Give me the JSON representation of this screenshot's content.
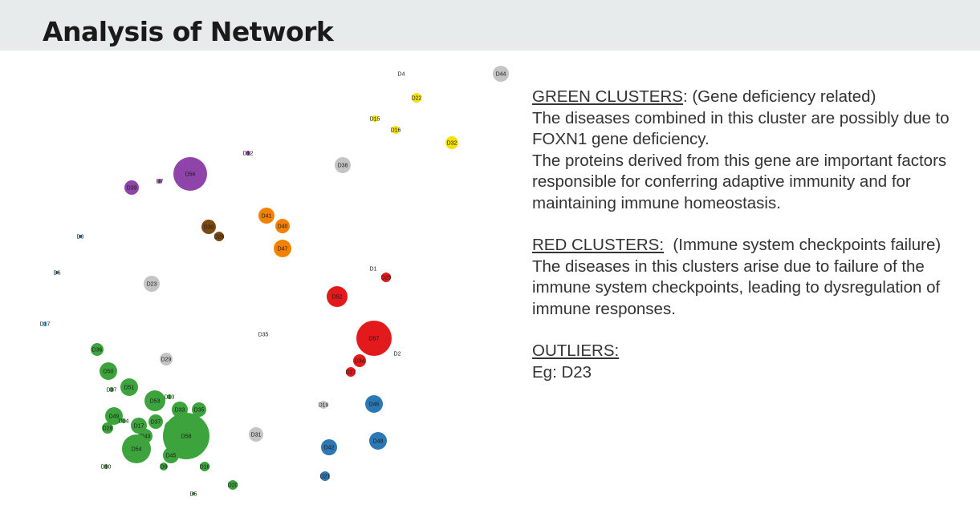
{
  "title": "Analysis of Network",
  "colors": {
    "green": "#3da33d",
    "red": "#e31a1c",
    "blue": "#2b78b4",
    "purple": "#8e44a8",
    "orange": "#f28200",
    "brown": "#7b4a12",
    "yellow": "#f5e100",
    "grey": "#c4c4c4",
    "lightblue": "#79b8e8"
  },
  "network": {
    "nodes": [
      {
        "id": "D4",
        "color": "yellow"
      },
      {
        "id": "D44",
        "color": "grey"
      },
      {
        "id": "D22",
        "color": "yellow"
      },
      {
        "id": "D15",
        "color": "yellow"
      },
      {
        "id": "D16",
        "color": "yellow"
      },
      {
        "id": "D32",
        "color": "yellow"
      },
      {
        "id": "D12",
        "color": "purple"
      },
      {
        "id": "D38",
        "color": "grey"
      },
      {
        "id": "D56",
        "color": "purple"
      },
      {
        "id": "D7",
        "color": "purple"
      },
      {
        "id": "D39",
        "color": "purple"
      },
      {
        "id": "D41",
        "color": "orange"
      },
      {
        "id": "D40",
        "color": "orange"
      },
      {
        "id": "D30",
        "color": "brown"
      },
      {
        "id": "D26",
        "color": "brown"
      },
      {
        "id": "D47",
        "color": "orange"
      },
      {
        "id": "D8",
        "color": "blue"
      },
      {
        "id": "D6",
        "color": "blue"
      },
      {
        "id": "D1",
        "color": "red"
      },
      {
        "id": "D25",
        "color": "red"
      },
      {
        "id": "D23",
        "color": "grey"
      },
      {
        "id": "D52",
        "color": "red"
      },
      {
        "id": "D17",
        "color": "lightblue"
      },
      {
        "id": "D35",
        "color": "grey"
      },
      {
        "id": "D57",
        "color": "red"
      },
      {
        "id": "D36",
        "color": "green"
      },
      {
        "id": "D2",
        "color": "red"
      },
      {
        "id": "D29",
        "color": "grey"
      },
      {
        "id": "D34",
        "color": "red"
      },
      {
        "id": "D50",
        "color": "green"
      },
      {
        "id": "D27",
        "color": "red"
      },
      {
        "id": "D51",
        "color": "green"
      },
      {
        "id": "D37",
        "color": "green"
      },
      {
        "id": "D53",
        "color": "green"
      },
      {
        "id": "D13",
        "color": "green"
      },
      {
        "id": "D19",
        "color": "grey"
      },
      {
        "id": "D46",
        "color": "blue"
      },
      {
        "id": "D33",
        "color": "green"
      },
      {
        "id": "D35",
        "color": "green"
      },
      {
        "id": "D3",
        "color": "green"
      },
      {
        "id": "D49",
        "color": "green"
      },
      {
        "id": "D14",
        "color": "green"
      },
      {
        "id": "D17",
        "color": "green"
      },
      {
        "id": "D37",
        "color": "green"
      },
      {
        "id": "D24",
        "color": "green"
      },
      {
        "id": "D28",
        "color": "green"
      },
      {
        "id": "D43",
        "color": "green"
      },
      {
        "id": "D58",
        "color": "green"
      },
      {
        "id": "D31",
        "color": "grey"
      },
      {
        "id": "D48",
        "color": "blue"
      },
      {
        "id": "D54",
        "color": "green"
      },
      {
        "id": "D42",
        "color": "blue"
      },
      {
        "id": "D45",
        "color": "green"
      },
      {
        "id": "D10",
        "color": "green"
      },
      {
        "id": "D9",
        "color": "green"
      },
      {
        "id": "D18",
        "color": "green"
      },
      {
        "id": "D21",
        "color": "blue"
      },
      {
        "id": "D20",
        "color": "green"
      },
      {
        "id": "D5",
        "color": "green"
      }
    ]
  },
  "panel": {
    "green_heading": "GREEN CLUSTERS",
    "green_subtitle": ": (Gene deficiency related)",
    "green_text1": "The diseases combined in this cluster are possibly due to FOXN1 gene deficiency.",
    "green_text2": "The proteins derived from this gene are important factors responsible for conferring adaptive immunity and for maintaining immune homeostasis.",
    "red_heading": "RED CLUSTERS:",
    "red_subtitle": "  (Immune system checkpoints failure)",
    "red_text": "The diseases in this clusters arise due to failure of the immune system checkpoints, leading to dysregulation of immune responses.",
    "outliers_heading": "OUTLIERS:",
    "outliers_text": "Eg: D23"
  }
}
